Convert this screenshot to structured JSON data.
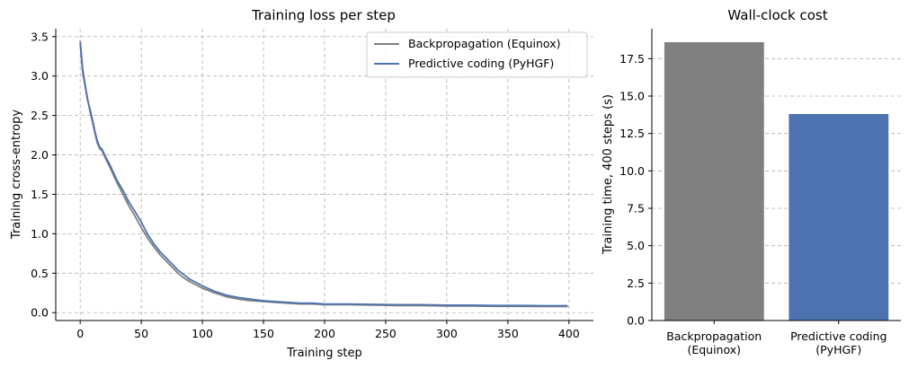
{
  "chart_data": [
    {
      "type": "line",
      "title": "Training loss per step",
      "xlabel": "Training step",
      "ylabel": "Training cross-entropy",
      "xlim": [
        -20,
        420
      ],
      "ylim": [
        -0.1,
        3.6
      ],
      "xticks": [
        0,
        50,
        100,
        150,
        200,
        250,
        300,
        350,
        400
      ],
      "xtick_labels": [
        "0",
        "50",
        "100",
        "150",
        "200",
        "250",
        "300",
        "350",
        "400"
      ],
      "yticks": [
        0.0,
        0.5,
        1.0,
        1.5,
        2.0,
        2.5,
        3.0,
        3.5
      ],
      "ytick_labels": [
        "0.0",
        "0.5",
        "1.0",
        "1.5",
        "2.0",
        "2.5",
        "3.0",
        "3.5"
      ],
      "grid": true,
      "legend": "top-right",
      "series": [
        {
          "name": "Backpropagation (Equinox)",
          "color": "#7f7f7f",
          "x": [
            0,
            2,
            4,
            6,
            8,
            10,
            12,
            14,
            16,
            18,
            20,
            25,
            30,
            35,
            40,
            45,
            50,
            55,
            60,
            65,
            70,
            75,
            80,
            85,
            90,
            95,
            100,
            110,
            120,
            130,
            140,
            150,
            160,
            170,
            180,
            190,
            200,
            220,
            240,
            260,
            280,
            300,
            320,
            340,
            360,
            380,
            399
          ],
          "values": [
            3.45,
            3.1,
            2.9,
            2.72,
            2.55,
            2.42,
            2.28,
            2.15,
            2.08,
            2.05,
            1.98,
            1.82,
            1.65,
            1.5,
            1.35,
            1.22,
            1.08,
            0.95,
            0.84,
            0.74,
            0.66,
            0.58,
            0.5,
            0.44,
            0.39,
            0.35,
            0.31,
            0.25,
            0.2,
            0.17,
            0.15,
            0.14,
            0.13,
            0.12,
            0.11,
            0.11,
            0.1,
            0.1,
            0.095,
            0.09,
            0.09,
            0.085,
            0.085,
            0.08,
            0.08,
            0.078,
            0.078
          ]
        },
        {
          "name": "Predictive coding (PyHGF)",
          "color": "#4c72b0",
          "x": [
            0,
            2,
            4,
            6,
            8,
            10,
            12,
            14,
            16,
            18,
            20,
            25,
            30,
            35,
            40,
            45,
            50,
            55,
            60,
            65,
            70,
            75,
            80,
            85,
            90,
            95,
            100,
            110,
            120,
            130,
            140,
            150,
            160,
            170,
            180,
            190,
            200,
            220,
            240,
            260,
            280,
            300,
            320,
            340,
            360,
            380,
            399
          ],
          "values": [
            3.42,
            3.05,
            2.88,
            2.7,
            2.58,
            2.45,
            2.3,
            2.18,
            2.1,
            2.07,
            2.0,
            1.85,
            1.68,
            1.55,
            1.4,
            1.28,
            1.15,
            1.0,
            0.88,
            0.78,
            0.7,
            0.62,
            0.54,
            0.48,
            0.42,
            0.38,
            0.34,
            0.27,
            0.22,
            0.19,
            0.17,
            0.15,
            0.14,
            0.13,
            0.12,
            0.12,
            0.11,
            0.11,
            0.105,
            0.1,
            0.1,
            0.095,
            0.095,
            0.09,
            0.09,
            0.088,
            0.088
          ]
        }
      ]
    },
    {
      "type": "bar",
      "title": "Wall-clock cost",
      "xlabel": "",
      "ylabel": "Training time, 400 steps (s)",
      "ylim": [
        0,
        19.5
      ],
      "yticks": [
        0.0,
        2.5,
        5.0,
        7.5,
        10.0,
        12.5,
        15.0,
        17.5
      ],
      "ytick_labels": [
        "0.0",
        "2.5",
        "5.0",
        "7.5",
        "10.0",
        "12.5",
        "15.0",
        "17.5"
      ],
      "grid": true,
      "categories": [
        [
          "Backpropagation",
          "(Equinox)"
        ],
        [
          "Predictive coding",
          "(PyHGF)"
        ]
      ],
      "values": [
        18.6,
        13.8
      ],
      "colors": [
        "#808080",
        "#4c72b0"
      ]
    }
  ]
}
